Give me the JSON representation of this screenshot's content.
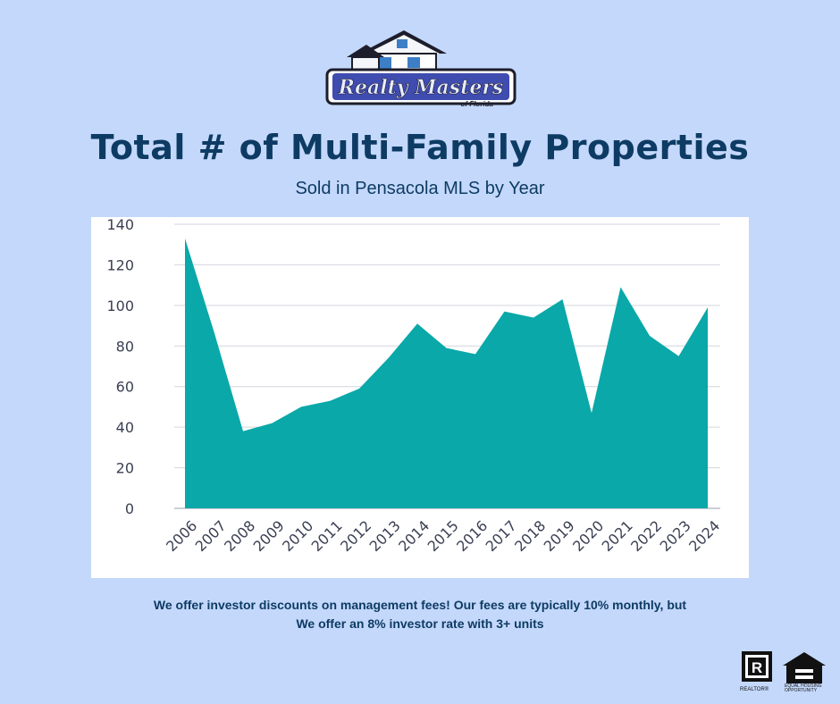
{
  "brand": {
    "line1": "Realty Masters",
    "line2": "of Florida"
  },
  "header": {
    "title": "Total # of Multi-Family Properties",
    "subtitle": "Sold in Pensacola MLS by Year"
  },
  "chart_data": {
    "type": "area",
    "title": "",
    "xlabel": "",
    "ylabel": "",
    "categories": [
      "2006",
      "2007",
      "2008",
      "2009",
      "2010",
      "2011",
      "2012",
      "2013",
      "2014",
      "2015",
      "2016",
      "2017",
      "2018",
      "2019",
      "2020",
      "2021",
      "2022",
      "2023",
      "2024"
    ],
    "values": [
      133,
      87,
      38,
      42,
      50,
      53,
      59,
      74,
      91,
      79,
      76,
      97,
      94,
      103,
      47,
      109,
      85,
      75,
      99
    ],
    "ylim": [
      0,
      140
    ],
    "yticks": [
      "0",
      "20",
      "40",
      "60",
      "80",
      "100",
      "120",
      "140"
    ],
    "grid": true,
    "legend": "none",
    "colors": {
      "fill": "#0aa8a8",
      "grid": "#d3d6de",
      "axis_text": "#3a3f52"
    }
  },
  "footer": {
    "line1": "We offer investor discounts on management fees! Our fees are typically 10% monthly, but",
    "line2": "We offer an 8% investor rate with 3+ units"
  },
  "badges": {
    "realtor": "REALTOR®",
    "equal_housing": "EQUAL HOUSING OPPORTUNITY"
  },
  "theme": {
    "background": "#c4d8fb",
    "title_color": "#0d3b63"
  }
}
